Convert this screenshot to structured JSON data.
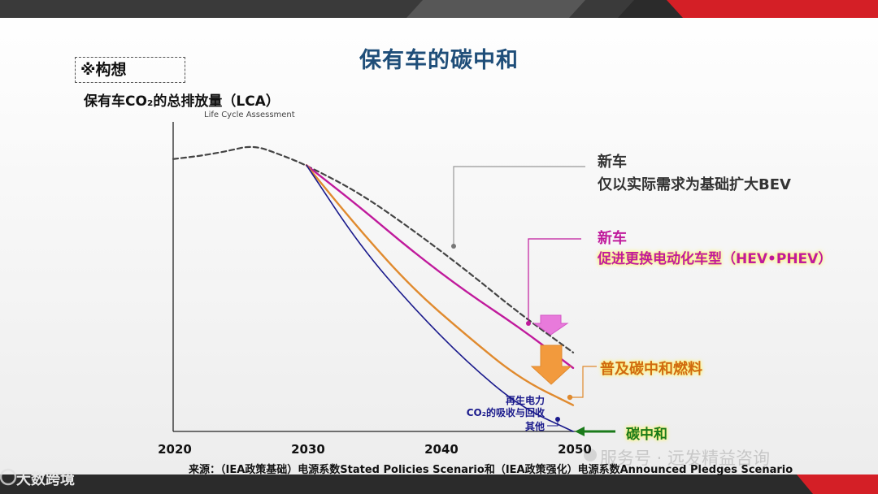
{
  "page": {
    "title": "保有车的碳中和",
    "concept_label": "※构想",
    "source_note": "来源：（IEA政策基础）电源系数Stated Policies Scenario和（IEA政策强化）电源系数Announced Pledges Scenario",
    "watermark_top": "服务号 · 远发精益咨询",
    "watermark_bottom": "大数跨境",
    "colors": {
      "title": "#1f4e79",
      "bev_line": "#444444",
      "hev_line": "#c01a9c",
      "fuel_line": "#e08a2e",
      "neutral_line": "#1a1a8c",
      "neutral_arrow": "#1a7a1a",
      "highlight": "#fff36b"
    }
  },
  "chart_data": {
    "type": "line",
    "title": "保有车CO₂的总排放量（LCA）",
    "subtitle": "Life Cycle Assessment",
    "xlabel": "",
    "ylabel": "",
    "xlim": [
      2020,
      2050
    ],
    "x_ticks": [
      "2020",
      "2030",
      "2040",
      "2050"
    ],
    "y_ticks": [],
    "ylim": [
      0,
      100
    ],
    "grid": false,
    "series": [
      {
        "name": "仅以实际需求为基础扩大BEV",
        "color": "#444444",
        "style": "dashed",
        "points": [
          [
            2020,
            88
          ],
          [
            2022,
            89
          ],
          [
            2024,
            90.5
          ],
          [
            2026,
            92.5
          ],
          [
            2028,
            89.5
          ],
          [
            2030,
            86
          ],
          [
            2034,
            77
          ],
          [
            2038,
            65
          ],
          [
            2042,
            52
          ],
          [
            2046,
            38
          ],
          [
            2050,
            25.5
          ]
        ]
      },
      {
        "name": "促进更换电动化车型（HEV•PHEV）",
        "color": "#c01a9c",
        "style": "solid",
        "points": [
          [
            2030,
            86
          ],
          [
            2034,
            72.5
          ],
          [
            2038,
            58
          ],
          [
            2042,
            45
          ],
          [
            2046,
            33.5
          ],
          [
            2050,
            20.5
          ]
        ]
      },
      {
        "name": "普及碳中和燃料",
        "color": "#e08a2e",
        "style": "solid",
        "points": [
          [
            2030,
            86
          ],
          [
            2034,
            65
          ],
          [
            2038,
            46
          ],
          [
            2042,
            31
          ],
          [
            2046,
            17
          ],
          [
            2050,
            8.5
          ]
        ]
      },
      {
        "name": "碳中和",
        "color": "#1a1a8c",
        "style": "solid",
        "points": [
          [
            2030,
            86
          ],
          [
            2034,
            60
          ],
          [
            2038,
            40
          ],
          [
            2042,
            22.5
          ],
          [
            2046,
            8
          ],
          [
            2050,
            0
          ]
        ]
      }
    ],
    "annotations": {
      "bev_line1": "新车",
      "bev_line2": "仅以实际需求为基础扩大BEV",
      "hev_line1": "新车",
      "hev_line2": "促进更换电动化车型（HEV•PHEV）",
      "fuel": "普及碳中和燃料",
      "neutral": "碳中和",
      "renewable": "再生电力",
      "co2_capture": "CO₂的吸收与回收",
      "other": "其他"
    }
  }
}
